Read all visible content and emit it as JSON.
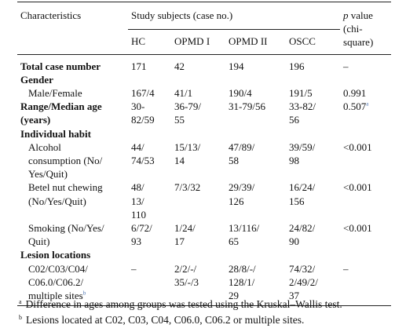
{
  "header": {
    "characteristics": "Characteristics",
    "group": "Study subjects (case no.)",
    "columns": [
      "HC",
      "OPMD I",
      "OPMD II",
      "OSCC"
    ],
    "p_symbol": "p",
    "p_text": [
      "value",
      "(chi-",
      "square)"
    ]
  },
  "rows": [
    {
      "label": [
        "Total case number"
      ],
      "bold": true,
      "cells": [
        [
          "171"
        ],
        [
          "42"
        ],
        [
          "194"
        ],
        [
          "196"
        ]
      ],
      "p": [
        "–"
      ]
    },
    {
      "label": [
        "Gender"
      ],
      "bold": true,
      "section": true
    },
    {
      "label": [
        "Male/Female"
      ],
      "cells": [
        [
          "167/4"
        ],
        [
          "41/1"
        ],
        [
          "190/4"
        ],
        [
          "191/5"
        ]
      ],
      "p": [
        "0.991"
      ]
    },
    {
      "label": [
        "Range/Median age",
        "(years)"
      ],
      "bold": true,
      "cells": [
        [
          "30-",
          "82/59"
        ],
        [
          "36-79/",
          "55"
        ],
        [
          "31-79/56"
        ],
        [
          "33-82/",
          "56"
        ]
      ],
      "p": [
        "0.507"
      ],
      "p_sup": "a"
    },
    {
      "label": [
        "Individual habit"
      ],
      "bold": true,
      "section": true
    },
    {
      "label": [
        "Alcohol",
        "consumption (No/",
        "Yes/Quit)"
      ],
      "cells": [
        [
          "44/",
          "74/53"
        ],
        [
          "15/13/",
          "14"
        ],
        [
          "47/89/",
          "58"
        ],
        [
          "39/59/",
          "98"
        ]
      ],
      "p": [
        "<0.001"
      ]
    },
    {
      "label": [
        "Betel nut chewing",
        "(No/Yes/Quit)"
      ],
      "cells": [
        [
          "48/",
          "13/",
          "110"
        ],
        [
          "7/3/32"
        ],
        [
          "29/39/",
          "126"
        ],
        [
          "16/24/",
          "156"
        ]
      ],
      "p": [
        "<0.001"
      ]
    },
    {
      "label": [
        "Smoking (No/Yes/",
        "Quit)"
      ],
      "cells": [
        [
          "6/72/",
          "93"
        ],
        [
          "1/24/",
          "17"
        ],
        [
          "13/116/",
          "65"
        ],
        [
          "24/82/",
          "90"
        ]
      ],
      "p": [
        "<0.001"
      ]
    },
    {
      "label": [
        "Lesion locations"
      ],
      "bold": true,
      "section": true
    },
    {
      "label": [
        "C02/C03/C04/",
        "C06.0/C06.2/",
        "multiple sites"
      ],
      "label_sup": "b",
      "cells": [
        [
          "–"
        ],
        [
          "2/2/-/",
          "35/-/3"
        ],
        [
          "28/8/-/",
          "128/1/",
          "29"
        ],
        [
          "74/32/",
          "2/49/2/",
          "37"
        ]
      ],
      "p": [
        "–"
      ]
    }
  ],
  "footnotes": [
    {
      "mark": "a",
      "text": "Difference in ages among groups was tested using the Kruskal–Wallis test."
    },
    {
      "mark": "b",
      "text": "Lesions located at C02, C03, C04, C06.0, C06.2 or multiple sites."
    }
  ]
}
